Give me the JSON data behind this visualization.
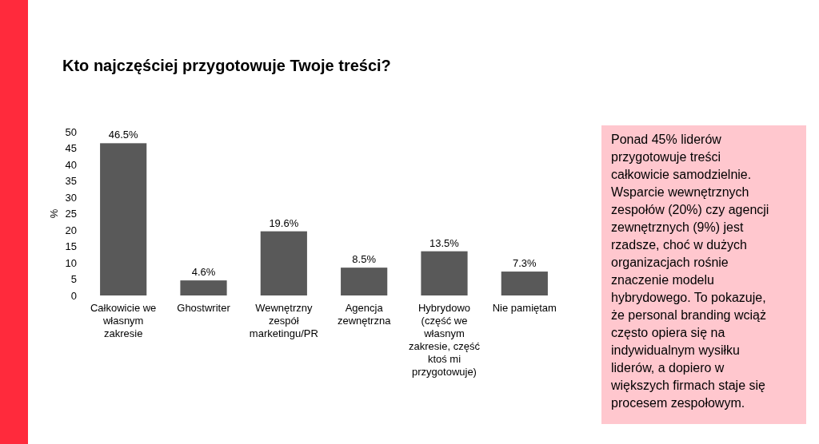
{
  "chart_data": {
    "type": "bar",
    "title": "Kto najczęściej przygotowuje Twoje treści?",
    "ylabel": "%",
    "categories": [
      "Całkowicie we własnym zakresie",
      "Ghostwriter",
      "Wewnętrzny zespół marketingu/PR",
      "Agencja zewnętrzna",
      "Hybrydowo (część we własnym zakresie, część ktoś mi przygotowuje)",
      "Nie pamiętam"
    ],
    "values": [
      46.5,
      4.6,
      19.6,
      8.5,
      13.5,
      7.3
    ],
    "value_labels": [
      "46.5%",
      "4.6%",
      "19.6%",
      "8.5%",
      "13.5%",
      "7.3%"
    ],
    "color": "#595959",
    "ylim": [
      0,
      50
    ],
    "yticks": [
      0,
      5,
      10,
      15,
      20,
      25,
      30,
      35,
      40,
      45,
      50
    ],
    "grid": false,
    "annotations": [
      "Ponad 45% liderów przygotowuje treści całkowicie samodzielnie. Wsparcie wewnętrznych zespołów (20%) czy agencji zewnętrznych (9%) jest rzadsze, choć w dużych organizacjach rośnie znaczenie modelu hybrydowego. To pokazuje, że personal branding wciąż często opiera się na indywidualnym wysiłku liderów, a dopiero w większych firmach staje się procesem zespołowym."
    ]
  }
}
